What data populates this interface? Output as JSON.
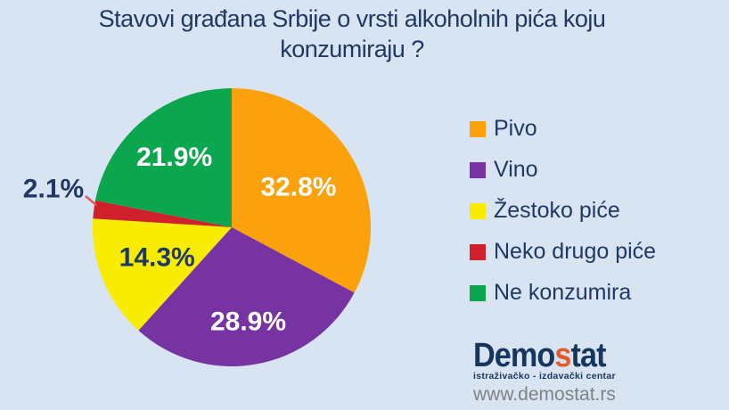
{
  "title_lines": [
    "Stavovi građana Srbije o vrsti alkoholnih pića koju",
    "konzumiraju ?"
  ],
  "colors": {
    "background": "#D8E4F2",
    "title_text": "#1F3864",
    "legend_text": "#1F3864"
  },
  "chart_data": {
    "type": "pie",
    "title": "Stavovi građana Srbije o vrsti alkoholnih pića koju konzumiraju ?",
    "start_angle_deg": 0,
    "direction": "clockwise",
    "total": 100,
    "slices": [
      {
        "id": "pivo",
        "label": "Pivo",
        "value": 32.8,
        "display": "32.8%",
        "color": "#FAA10B",
        "label_color": "#FFFFFF",
        "label_placement": "inside",
        "label_radius_frac": 0.56
      },
      {
        "id": "vino",
        "label": "Vino",
        "value": 28.9,
        "display": "28.9%",
        "color": "#7733A2",
        "label_color": "#FFFFFF",
        "label_placement": "inside",
        "label_radius_frac": 0.69
      },
      {
        "id": "zestoko-pice",
        "label": "Žestoko piće",
        "value": 14.3,
        "display": "14.3%",
        "color": "#F8ED00",
        "label_color": "#1F3864",
        "label_placement": "inside",
        "label_radius_frac": 0.58
      },
      {
        "id": "neko-drugo-pice",
        "label": "Neko drugo piće",
        "value": 2.1,
        "display": "2.1%",
        "color": "#D0202C",
        "label_color": "#1F3864",
        "label_placement": "outside",
        "label_xy": [
          60,
          212
        ],
        "leader": [
          [
            96,
            220
          ],
          [
            108,
            230
          ]
        ],
        "leader_color": "#DB5B5B"
      },
      {
        "id": "ne-konzumira",
        "label": "Ne konzumira",
        "value": 21.9,
        "display": "21.9%",
        "color": "#0CA64F",
        "label_color": "#FFFFFF",
        "label_placement": "inside",
        "label_radius_frac": 0.65
      }
    ],
    "layout": {
      "center": [
        260,
        255
      ],
      "radius": 156,
      "legend_position": "right",
      "grid": false
    }
  },
  "logo": {
    "word_start": "Demo",
    "word_accent": "s",
    "word_end": "tat",
    "subtitle": "istraživačko - izdavački centar",
    "url": "www.demostat.rs",
    "accent_color": "#E55C2B",
    "text_color": "#17365D",
    "url_color": "#7F8285"
  }
}
